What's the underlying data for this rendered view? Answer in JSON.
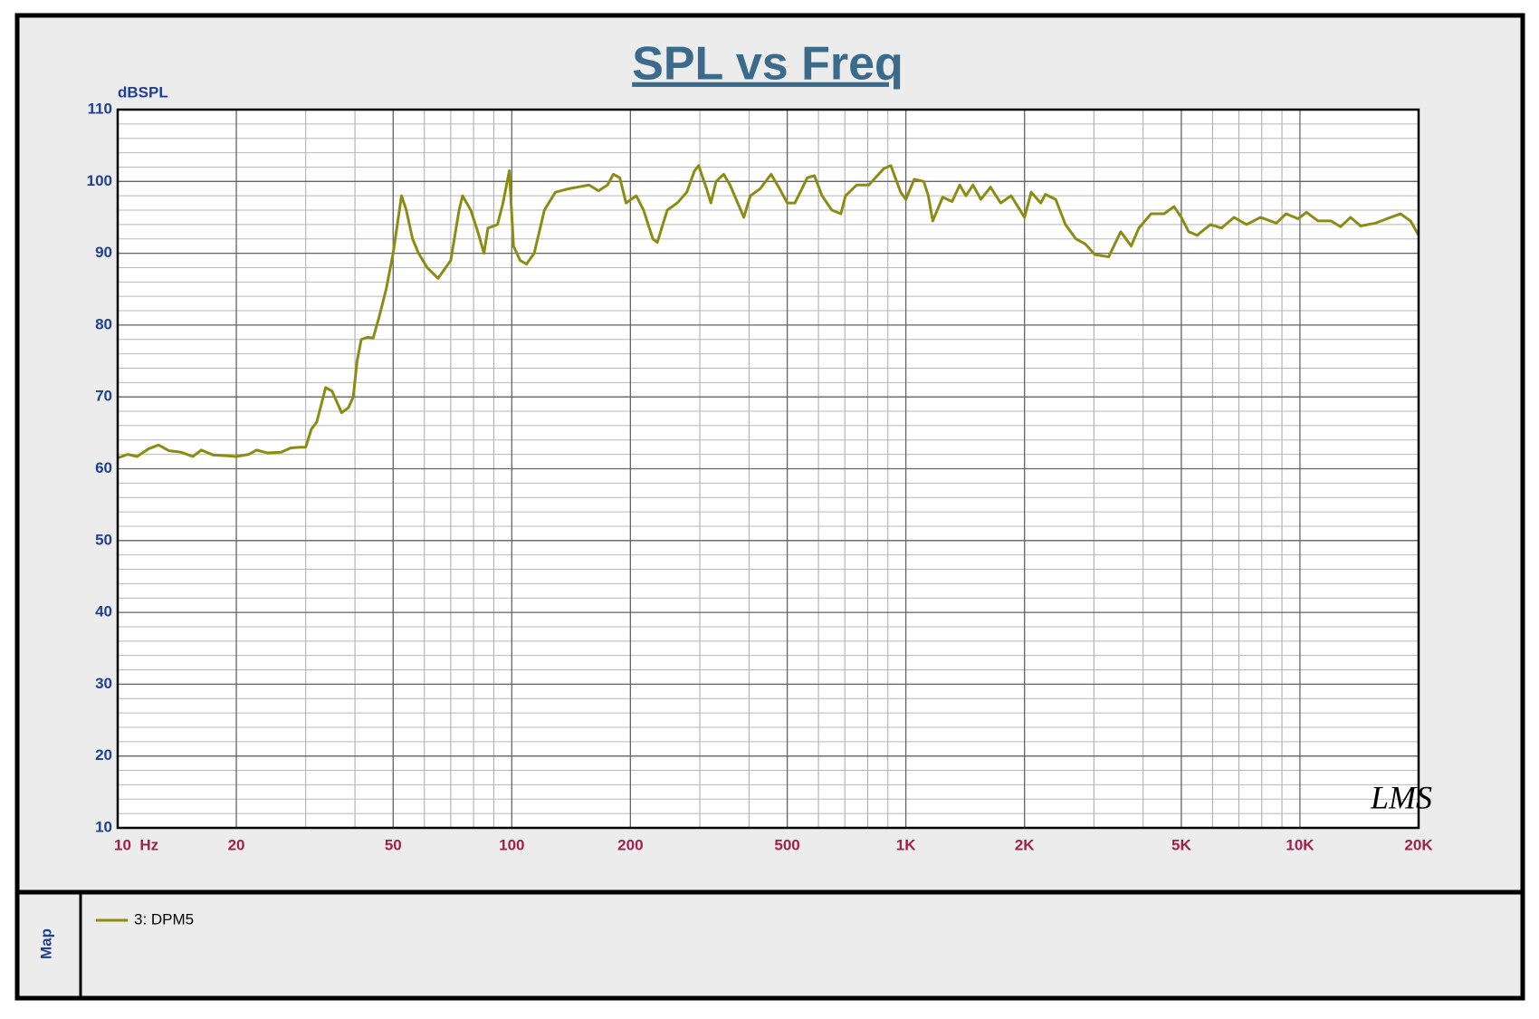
{
  "chart_data": {
    "type": "line",
    "title": "SPL vs Freq",
    "y_label": "dBSPL",
    "side_label": "Map",
    "logo": "LMS",
    "x_scale": "log",
    "grid": true,
    "minor_grid": true,
    "xlim": [
      10,
      20000
    ],
    "ylim": [
      10,
      110
    ],
    "xticks": [
      {
        "value": 10,
        "label": "10  Hz"
      },
      20,
      50,
      100,
      200,
      500,
      {
        "value": 1000,
        "label": "1K"
      },
      {
        "value": 2000,
        "label": "2K"
      },
      {
        "value": 5000,
        "label": "5K"
      },
      {
        "value": 10000,
        "label": "10K"
      },
      {
        "value": 20000,
        "label": "20K"
      }
    ],
    "yticks": [
      10,
      20,
      30,
      40,
      50,
      60,
      70,
      80,
      90,
      100,
      110
    ],
    "x": [
      10,
      10.6,
      11.2,
      12,
      12.7,
      13.5,
      14.5,
      15.5,
      16.3,
      17.5,
      19,
      20,
      21.5,
      22.5,
      24,
      26,
      27.5,
      29,
      30,
      31,
      32,
      33.7,
      35,
      37,
      38.5,
      39.6,
      40.5,
      41.5,
      43,
      44.5,
      46,
      48,
      50,
      52.5,
      54,
      56,
      58,
      61,
      65,
      70,
      73.5,
      75,
      78.7,
      82,
      85,
      87,
      92,
      95,
      98.6,
      101,
      105,
      109,
      114,
      121,
      129,
      140,
      157,
      166,
      175,
      181,
      188,
      195,
      207,
      216,
      228,
      234,
      248,
      263,
      278,
      291,
      298,
      312,
      320,
      330,
      345,
      358,
      388,
      403,
      427,
      455,
      478,
      500,
      523,
      562,
      586,
      613,
      649,
      684,
      703,
      750,
      805,
      880,
      916,
      970,
      1000,
      1050,
      1110,
      1140,
      1170,
      1240,
      1310,
      1370,
      1420,
      1480,
      1550,
      1640,
      1740,
      1850,
      2000,
      2080,
      2200,
      2260,
      2400,
      2540,
      2700,
      2850,
      3020,
      3270,
      3510,
      3730,
      3900,
      4190,
      4520,
      4790,
      5000,
      5220,
      5480,
      5930,
      6320,
      6800,
      7320,
      7940,
      8710,
      9220,
      9890,
      10390,
      11120,
      11980,
      12680,
      13440,
      14250,
      15550,
      16990,
      17990,
      19080,
      20000
    ],
    "series": [
      {
        "name": "3: DPM5",
        "color": "#8c8c14",
        "values": [
          61.5,
          62,
          61.7,
          62.8,
          63.3,
          62.5,
          62.3,
          61.7,
          62.6,
          61.9,
          61.8,
          61.7,
          62,
          62.6,
          62.2,
          62.3,
          62.9,
          63,
          63,
          65.5,
          66.5,
          71.3,
          70.8,
          67.8,
          68.5,
          70,
          75,
          78,
          78.3,
          78.2,
          81,
          85,
          90,
          98,
          96,
          92,
          90,
          88,
          86.5,
          89,
          96,
          98,
          96,
          93,
          90,
          93.5,
          94,
          97,
          101.5,
          91,
          89,
          88.5,
          90,
          96,
          98.5,
          99,
          99.5,
          98.7,
          99.5,
          101,
          100.5,
          97,
          98,
          96,
          92,
          91.5,
          96,
          97,
          98.5,
          101.5,
          102.2,
          99,
          97,
          100,
          101,
          99.5,
          95,
          98,
          99,
          101,
          99,
          97,
          97,
          100.5,
          100.8,
          98,
          96,
          95.5,
          98,
          99.5,
          99.5,
          101.8,
          102.2,
          98.5,
          97.5,
          100.3,
          100,
          98,
          94.5,
          97.8,
          97.2,
          99.5,
          98,
          99.5,
          97.5,
          99.2,
          97,
          98,
          95,
          98.5,
          97,
          98.2,
          97.5,
          94,
          92,
          91.3,
          89.8,
          89.5,
          93,
          91,
          93.5,
          95.5,
          95.5,
          96.5,
          95,
          93,
          92.5,
          94,
          93.5,
          95,
          94,
          95,
          94.2,
          95.5,
          94.8,
          95.7,
          94.5,
          94.5,
          93.7,
          95,
          93.8,
          94.2,
          95,
          95.5,
          94.5,
          92.5
        ]
      }
    ]
  }
}
